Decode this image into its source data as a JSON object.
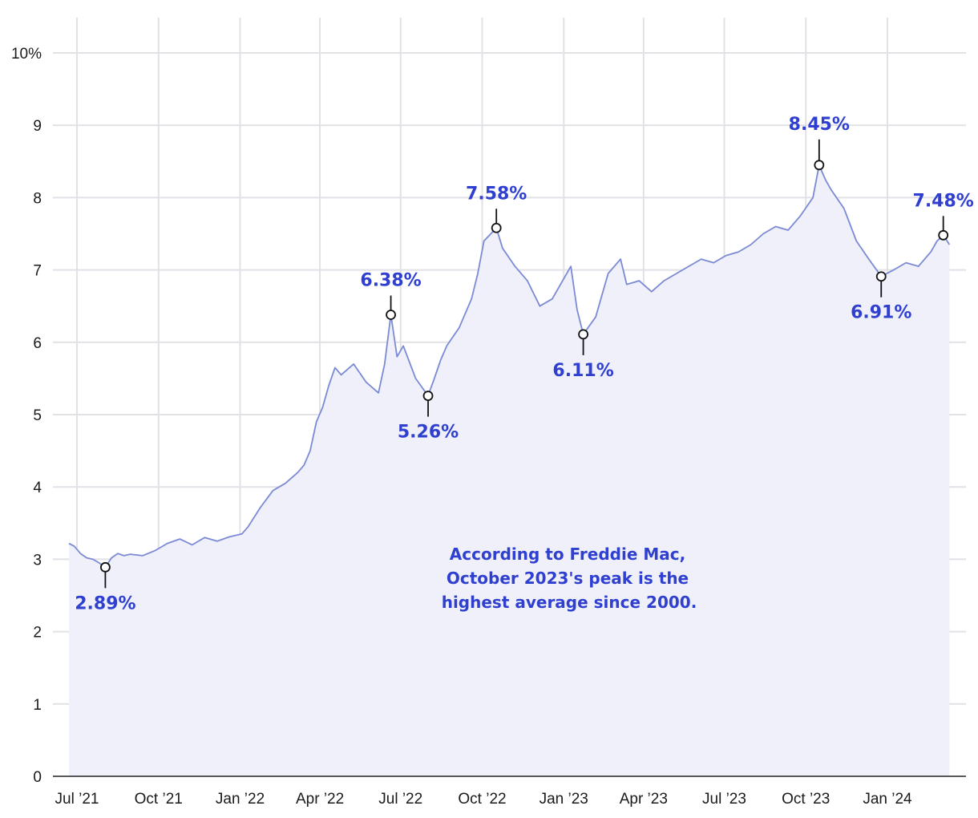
{
  "chart_data": {
    "type": "area",
    "title": "",
    "xlabel": "",
    "ylabel": "",
    "ylim": [
      0,
      10
    ],
    "y_ticks": [
      "0",
      "1",
      "2",
      "3",
      "4",
      "5",
      "6",
      "7",
      "8",
      "9",
      "10%"
    ],
    "x_ticks": [
      {
        "label": "Jul ’21",
        "date": "2021-07-01"
      },
      {
        "label": "Oct ’21",
        "date": "2021-10-01"
      },
      {
        "label": "Jan ’22",
        "date": "2022-01-01"
      },
      {
        "label": "Apr ’22",
        "date": "2022-04-01"
      },
      {
        "label": "Jul ’22",
        "date": "2022-07-01"
      },
      {
        "label": "Oct ’22",
        "date": "2022-10-01"
      },
      {
        "label": "Jan ’23",
        "date": "2023-01-01"
      },
      {
        "label": "Apr ’23",
        "date": "2023-04-01"
      },
      {
        "label": "Jul ’23",
        "date": "2023-07-01"
      },
      {
        "label": "Oct ’23",
        "date": "2023-10-01"
      },
      {
        "label": "Jan ’24",
        "date": "2024-01-01"
      }
    ],
    "grid": true,
    "line_color": "#7b8ad4",
    "fill_color": "#eff0fa",
    "annotation_color": "#2f3fcf",
    "series": [
      {
        "x": [
          "2021-06-22",
          "2021-06-28",
          "2021-07-05",
          "2021-07-12",
          "2021-07-19",
          "2021-07-26",
          "2021-08-02",
          "2021-08-09",
          "2021-08-16",
          "2021-08-23",
          "2021-08-30",
          "2021-09-13",
          "2021-09-27",
          "2021-10-11",
          "2021-10-25",
          "2021-11-08",
          "2021-11-22",
          "2021-12-06",
          "2021-12-20",
          "2022-01-03",
          "2022-01-10",
          "2022-01-24",
          "2022-02-07",
          "2022-02-21",
          "2022-03-07",
          "2022-03-14",
          "2022-03-21",
          "2022-03-28",
          "2022-04-04",
          "2022-04-11",
          "2022-04-18",
          "2022-04-25",
          "2022-05-09",
          "2022-05-23",
          "2022-06-06",
          "2022-06-13",
          "2022-06-20",
          "2022-06-27",
          "2022-07-04",
          "2022-07-18",
          "2022-08-01",
          "2022-08-08",
          "2022-08-15",
          "2022-08-22",
          "2022-09-05",
          "2022-09-19",
          "2022-09-26",
          "2022-10-03",
          "2022-10-17",
          "2022-10-24",
          "2022-11-07",
          "2022-11-21",
          "2022-12-05",
          "2022-12-19",
          "2023-01-02",
          "2023-01-09",
          "2023-01-16",
          "2023-01-23",
          "2023-02-06",
          "2023-02-20",
          "2023-03-06",
          "2023-03-13",
          "2023-03-27",
          "2023-04-10",
          "2023-04-24",
          "2023-05-08",
          "2023-05-22",
          "2023-06-05",
          "2023-06-19",
          "2023-07-03",
          "2023-07-17",
          "2023-07-31",
          "2023-08-14",
          "2023-08-28",
          "2023-09-11",
          "2023-09-25",
          "2023-10-09",
          "2023-10-16",
          "2023-10-23",
          "2023-10-30",
          "2023-11-13",
          "2023-11-27",
          "2023-12-11",
          "2023-12-25",
          "2024-01-08",
          "2024-01-22",
          "2024-02-05",
          "2024-02-19",
          "2024-02-26",
          "2024-03-04",
          "2024-03-11"
        ],
        "values": [
          3.22,
          3.18,
          3.08,
          3.02,
          3.0,
          2.95,
          2.89,
          3.02,
          3.08,
          3.05,
          3.07,
          3.05,
          3.12,
          3.22,
          3.28,
          3.2,
          3.3,
          3.25,
          3.31,
          3.35,
          3.45,
          3.72,
          3.95,
          4.05,
          4.2,
          4.3,
          4.5,
          4.9,
          5.1,
          5.4,
          5.65,
          5.55,
          5.7,
          5.45,
          5.3,
          5.7,
          6.38,
          5.8,
          5.95,
          5.5,
          5.26,
          5.5,
          5.75,
          5.95,
          6.2,
          6.6,
          6.95,
          7.4,
          7.58,
          7.3,
          7.05,
          6.85,
          6.5,
          6.6,
          6.9,
          7.05,
          6.45,
          6.11,
          6.35,
          6.95,
          7.15,
          6.8,
          6.85,
          6.7,
          6.85,
          6.95,
          7.05,
          7.15,
          7.1,
          7.2,
          7.25,
          7.35,
          7.5,
          7.6,
          7.55,
          7.75,
          8.0,
          8.45,
          8.25,
          8.1,
          7.85,
          7.4,
          7.15,
          6.91,
          7.0,
          7.1,
          7.05,
          7.25,
          7.4,
          7.48,
          7.35
        ]
      }
    ],
    "annotations": [
      {
        "label": "2.89%",
        "date": "2021-08-02",
        "value": 2.89,
        "position": "below"
      },
      {
        "label": "6.38%",
        "date": "2022-06-20",
        "value": 6.38,
        "position": "above"
      },
      {
        "label": "5.26%",
        "date": "2022-08-01",
        "value": 5.26,
        "position": "below"
      },
      {
        "label": "7.58%",
        "date": "2022-10-17",
        "value": 7.58,
        "position": "above"
      },
      {
        "label": "6.11%",
        "date": "2023-01-23",
        "value": 6.11,
        "position": "below"
      },
      {
        "label": "8.45%",
        "date": "2023-10-16",
        "value": 8.45,
        "position": "above"
      },
      {
        "label": "6.91%",
        "date": "2023-12-25",
        "value": 6.91,
        "position": "below"
      },
      {
        "label": "7.48%",
        "date": "2024-03-04",
        "value": 7.48,
        "position": "above"
      }
    ],
    "note": [
      "According to Freddie Mac,",
      "October 2023's peak is the",
      "highest average since 2000."
    ]
  }
}
